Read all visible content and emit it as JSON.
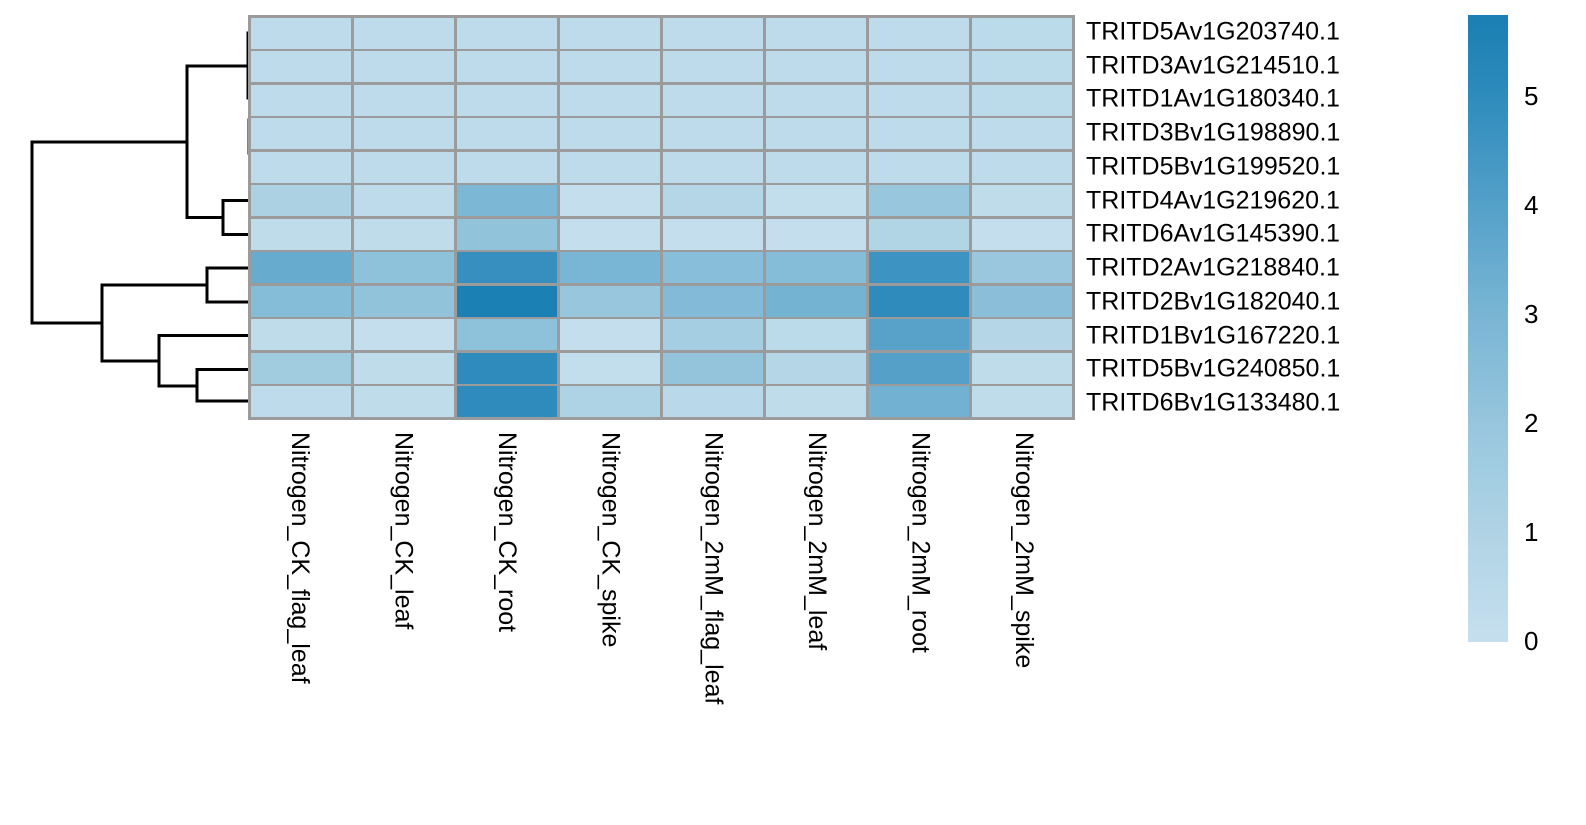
{
  "figure": {
    "background_color": "#ffffff",
    "grid_color": "#9b9b9b",
    "dendrogram_color": "#000000",
    "label_color": "#000000"
  },
  "chart_data": {
    "type": "heatmap",
    "title": "",
    "xlabel": "",
    "ylabel": "",
    "rows": [
      "TRITD5Av1G203740.1",
      "TRITD3Av1G214510.1",
      "TRITD1Av1G180340.1",
      "TRITD3Bv1G198890.1",
      "TRITD5Bv1G199520.1",
      "TRITD4Av1G219620.1",
      "TRITD6Av1G145390.1",
      "TRITD2Av1G218840.1",
      "TRITD2Bv1G182040.1",
      "TRITD1Bv1G167220.1",
      "TRITD5Bv1G240850.1",
      "TRITD6Bv1G133480.1"
    ],
    "columns": [
      "Nitrogen_CK_flag_leaf",
      "Nitrogen_CK_leaf",
      "Nitrogen_CK_root",
      "Nitrogen_CK_spike",
      "Nitrogen_2mM_flag_leaf",
      "Nitrogen_2mM_leaf",
      "Nitrogen_2mM_root",
      "Nitrogen_2mM_spike"
    ],
    "values": [
      [
        0.4,
        0.4,
        0.4,
        0.4,
        0.4,
        0.4,
        0.4,
        0.5
      ],
      [
        0.4,
        0.4,
        0.4,
        0.4,
        0.4,
        0.4,
        0.4,
        0.5
      ],
      [
        0.4,
        0.4,
        0.4,
        0.4,
        0.4,
        0.4,
        0.4,
        0.5
      ],
      [
        0.4,
        0.4,
        0.4,
        0.4,
        0.4,
        0.4,
        0.4,
        0.4
      ],
      [
        0.4,
        0.4,
        0.4,
        0.4,
        0.4,
        0.4,
        0.4,
        0.4
      ],
      [
        1.2,
        0.4,
        2.9,
        0.1,
        0.8,
        0.2,
        2.0,
        0.3
      ],
      [
        0.3,
        0.3,
        2.2,
        0.1,
        0.1,
        0.1,
        0.9,
        0.1
      ],
      [
        3.5,
        2.3,
        4.8,
        3.0,
        2.5,
        2.6,
        4.6,
        1.9
      ],
      [
        2.6,
        2.2,
        5.7,
        2.0,
        2.7,
        3.1,
        5.0,
        2.4
      ],
      [
        0.3,
        0.1,
        2.3,
        0.1,
        1.4,
        0.5,
        3.9,
        0.8
      ],
      [
        1.6,
        0.3,
        5.0,
        0.2,
        2.1,
        0.8,
        4.0,
        0.3
      ],
      [
        0.4,
        0.3,
        5.0,
        1.1,
        0.6,
        0.3,
        3.2,
        0.3
      ]
    ],
    "legend_position": "right",
    "color_scale": {
      "min": 0,
      "max": 5.74,
      "ticks": [
        "0",
        "1",
        "2",
        "3",
        "4",
        "5"
      ],
      "tick_values": [
        0,
        1,
        2,
        3,
        4,
        5
      ],
      "anchors": [
        {
          "value": 0.0,
          "color": "#c6dfee"
        },
        {
          "value": 1.0,
          "color": "#b0d4e5"
        },
        {
          "value": 2.0,
          "color": "#97c6dd"
        },
        {
          "value": 3.0,
          "color": "#79b5d4"
        },
        {
          "value": 4.0,
          "color": "#54a0c9"
        },
        {
          "value": 5.0,
          "color": "#2e8bbc"
        },
        {
          "value": 5.8,
          "color": "#187eb2"
        }
      ]
    },
    "row_dendrogram": {
      "segments": [
        [
          32,
          142,
          32,
          323
        ],
        [
          32,
          142,
          187,
          142
        ],
        [
          32,
          323,
          102,
          323
        ],
        [
          187,
          66,
          187,
          217.5
        ],
        [
          187,
          66,
          249,
          66
        ],
        [
          187,
          217.5,
          223,
          217.5
        ],
        [
          223,
          200.5,
          223,
          234.5
        ],
        [
          223,
          200.5,
          249,
          200.5
        ],
        [
          223,
          234.5,
          249,
          234.5
        ],
        [
          248,
          33,
          248,
          98
        ],
        [
          249,
          120,
          249,
          153
        ],
        [
          102,
          285,
          102,
          361
        ],
        [
          102,
          285,
          207,
          285
        ],
        [
          207,
          268,
          207,
          302
        ],
        [
          207,
          268,
          249,
          268
        ],
        [
          207,
          302,
          249,
          302
        ],
        [
          102,
          361,
          159,
          361
        ],
        [
          159,
          335.5,
          159,
          386
        ],
        [
          159,
          335.5,
          249,
          335.5
        ],
        [
          159,
          386,
          197,
          386
        ],
        [
          197,
          369.5,
          197,
          401
        ],
        [
          197,
          369.5,
          249,
          369.5
        ],
        [
          197,
          401,
          249,
          401
        ]
      ]
    }
  }
}
